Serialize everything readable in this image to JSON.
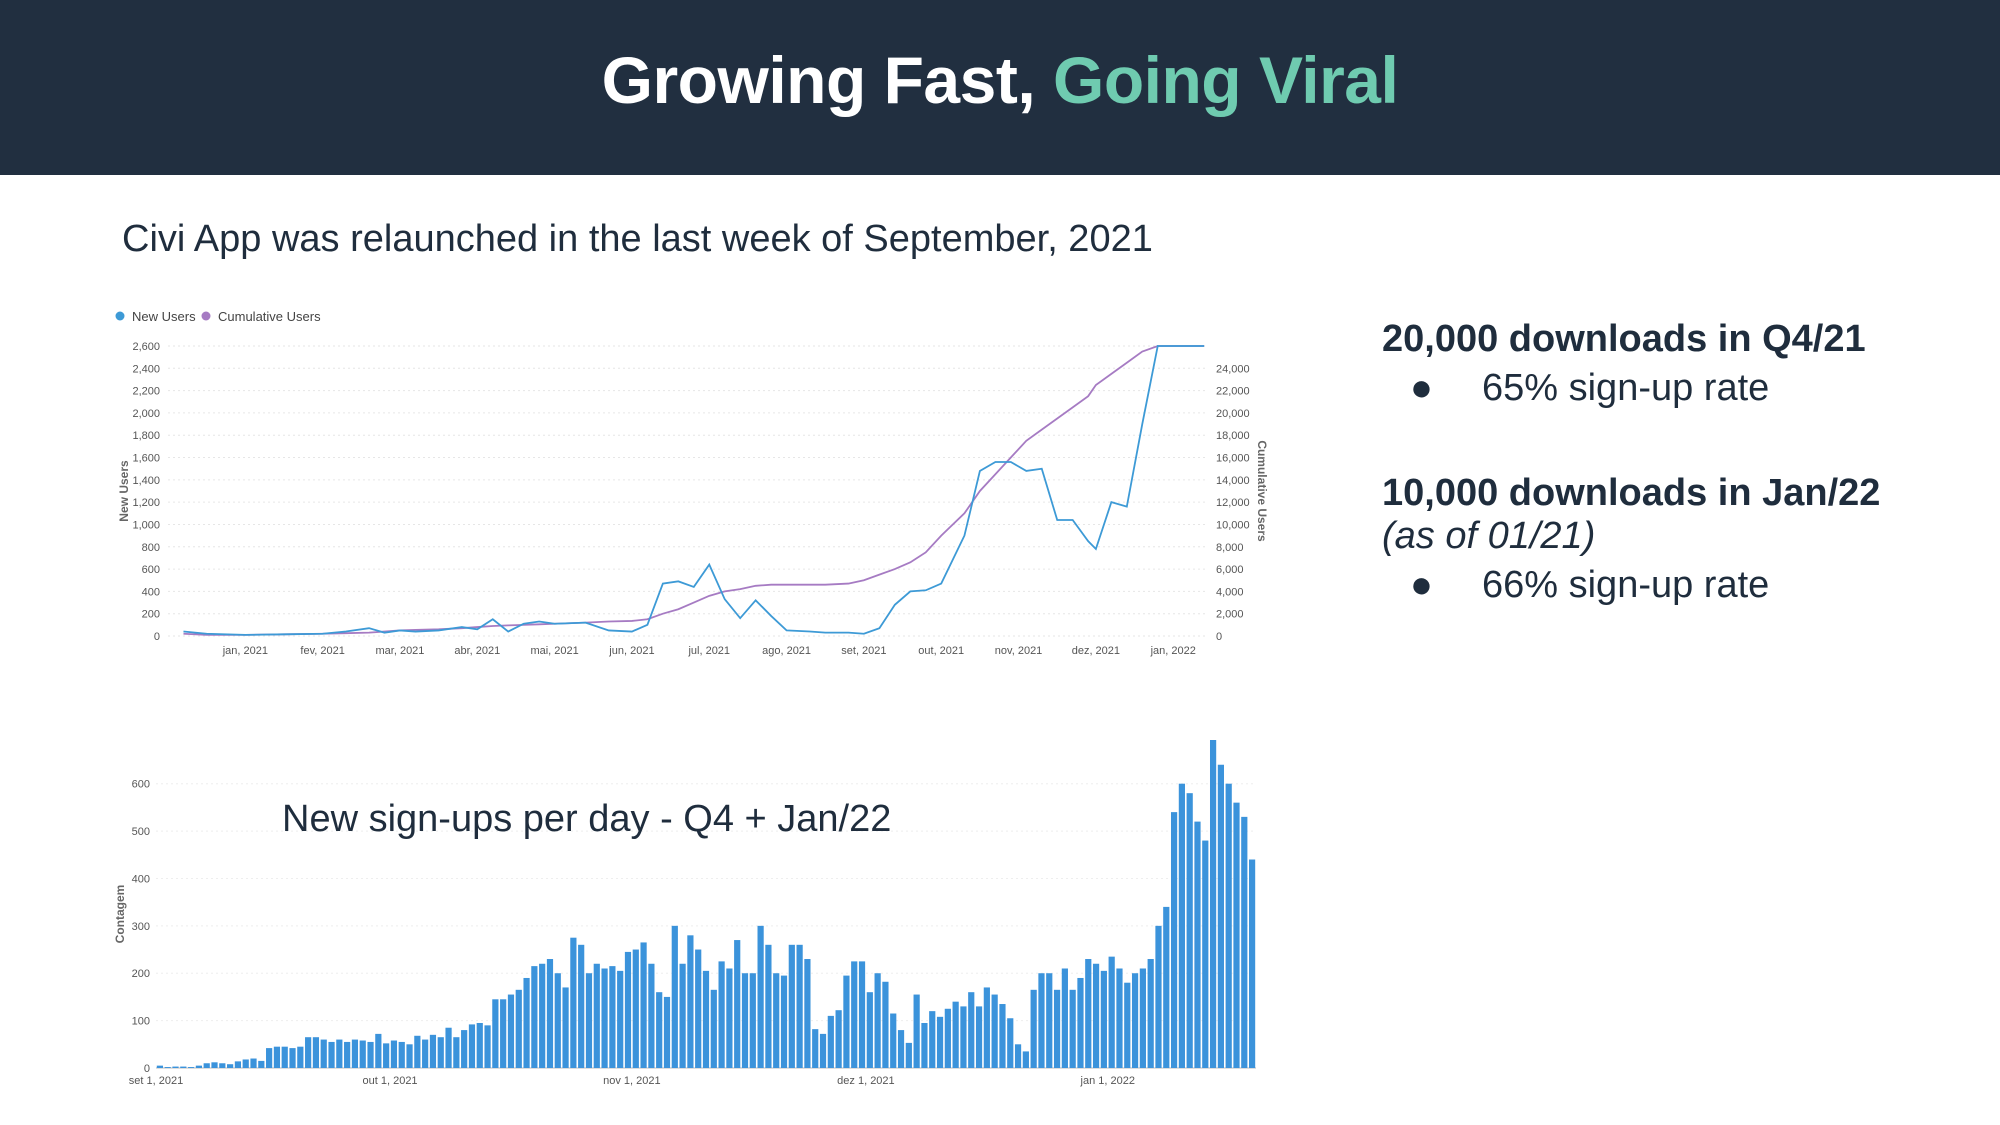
{
  "header": {
    "title_main": "Growing Fast, ",
    "title_accent": "Going Viral"
  },
  "subtitle": "Civi App was relaunched in the last week of September, 2021",
  "stats": {
    "q4_headline": "20,000 downloads in Q4/21",
    "q4_bullet": "65% sign-up rate",
    "jan_headline": "10,000 downloads in Jan/22",
    "jan_note": "(as of 01/21)",
    "jan_bullet": "66% sign-up rate",
    "bullet_glyph": "●"
  },
  "colors": {
    "header_bg": "#212f40",
    "accent": "#6fcbb0",
    "new_users": "#3d9ad6",
    "cumulative": "#a67bc3",
    "bars": "#3b93db"
  },
  "chart_data": [
    {
      "type": "line",
      "legend": [
        "New Users",
        "Cumulative Users"
      ],
      "legend_placement": "top-left",
      "ylabel": "New Users",
      "y2label": "Cumulative Users",
      "ylim": [
        0,
        2600
      ],
      "y2lim": [
        0,
        26000
      ],
      "yticks": [
        "0",
        "200",
        "400",
        "600",
        "800",
        "1,000",
        "1,200",
        "1,400",
        "1,600",
        "1,800",
        "2,000",
        "2,200",
        "2,400",
        "2,600"
      ],
      "y2ticks": [
        "0",
        "2,000",
        "4,000",
        "6,000",
        "8,000",
        "10,000",
        "12,000",
        "14,000",
        "16,000",
        "18,000",
        "20,000",
        "22,000",
        "24,000"
      ],
      "xticks": [
        "jan, 2021",
        "fev, 2021",
        "mar, 2021",
        "abr, 2021",
        "mai, 2021",
        "jun, 2021",
        "jul, 2021",
        "ago, 2021",
        "set, 2021",
        "out, 2021",
        "nov, 2021",
        "dez, 2021",
        "jan, 2022"
      ],
      "x": [
        -0.8,
        -0.5,
        0,
        0.5,
        1,
        1.3,
        1.6,
        1.8,
        2,
        2.2,
        2.5,
        2.8,
        3,
        3.2,
        3.4,
        3.6,
        3.8,
        4,
        4.4,
        4.7,
        5,
        5.2,
        5.4,
        5.6,
        5.8,
        6,
        6.2,
        6.4,
        6.6,
        6.8,
        7,
        7.3,
        7.5,
        7.8,
        8,
        8.2,
        8.4,
        8.6,
        8.8,
        9,
        9.3,
        9.5,
        9.7,
        9.9,
        10.1,
        10.3,
        10.5,
        10.7,
        10.9,
        11,
        11.2,
        11.4,
        11.6,
        11.8,
        12,
        12.2,
        12.4
      ],
      "series": [
        {
          "name": "New Users",
          "values": [
            40,
            20,
            10,
            15,
            20,
            40,
            70,
            30,
            50,
            40,
            50,
            80,
            60,
            150,
            40,
            110,
            130,
            110,
            120,
            50,
            40,
            100,
            470,
            490,
            440,
            640,
            330,
            160,
            320,
            180,
            50,
            40,
            30,
            30,
            20,
            70,
            280,
            400,
            410,
            470,
            900,
            1480,
            1560,
            1560,
            1480,
            1500,
            1040,
            1040,
            850,
            780,
            1200,
            1160,
            1900,
            2600,
            2600,
            2600,
            2600
          ],
          "note": "Daily new users, read off left axis"
        },
        {
          "name": "Cumulative Users",
          "values": [
            200,
            100,
            100,
            150,
            200,
            250,
            300,
            400,
            500,
            550,
            600,
            700,
            800,
            900,
            950,
            1000,
            1050,
            1100,
            1200,
            1300,
            1350,
            1500,
            2000,
            2400,
            3000,
            3600,
            4000,
            4200,
            4500,
            4600,
            4600,
            4600,
            4600,
            4700,
            5000,
            5500,
            6000,
            6600,
            7500,
            9000,
            11000,
            13000,
            14500,
            16000,
            17500,
            18500,
            19500,
            20500,
            21500,
            22500,
            23500,
            24500,
            25500,
            26000,
            26000,
            26000,
            26000
          ],
          "note": "Cumulative users, read off right axis"
        }
      ]
    },
    {
      "type": "bar",
      "title": "New sign-ups per day - Q4 + Jan/22",
      "ylabel": "Contagem",
      "ylim": [
        0,
        650
      ],
      "yticks": [
        "0",
        "100",
        "200",
        "300",
        "400",
        "500",
        "600"
      ],
      "xticks": [
        "set 1, 2021",
        "out 1, 2021",
        "nov 1, 2021",
        "dez 1, 2021",
        "jan 1, 2022"
      ],
      "values": [
        5,
        2,
        3,
        3,
        2,
        5,
        10,
        12,
        10,
        8,
        14,
        18,
        20,
        15,
        42,
        45,
        45,
        42,
        45,
        65,
        65,
        60,
        55,
        60,
        55,
        60,
        58,
        55,
        72,
        52,
        58,
        55,
        50,
        68,
        60,
        70,
        65,
        85,
        65,
        80,
        92,
        95,
        90,
        145,
        145,
        155,
        165,
        190,
        215,
        220,
        230,
        200,
        170,
        275,
        260,
        200,
        220,
        210,
        215,
        205,
        245,
        250,
        265,
        220,
        160,
        150,
        300,
        220,
        280,
        250,
        205,
        165,
        225,
        210,
        270,
        200,
        200,
        300,
        260,
        200,
        195,
        260,
        260,
        230,
        82,
        72,
        110,
        122,
        195,
        225,
        225,
        160,
        200,
        182,
        115,
        80,
        53,
        155,
        95,
        120,
        108,
        125,
        140,
        130,
        160,
        130,
        170,
        155,
        135,
        105,
        50,
        35,
        165,
        200,
        200,
        165,
        210,
        165,
        190,
        230,
        220,
        205,
        235,
        210,
        180,
        200,
        210,
        230,
        300,
        340,
        540,
        600,
        580,
        520,
        480,
        700,
        640,
        600,
        560,
        530,
        440
      ]
    }
  ]
}
